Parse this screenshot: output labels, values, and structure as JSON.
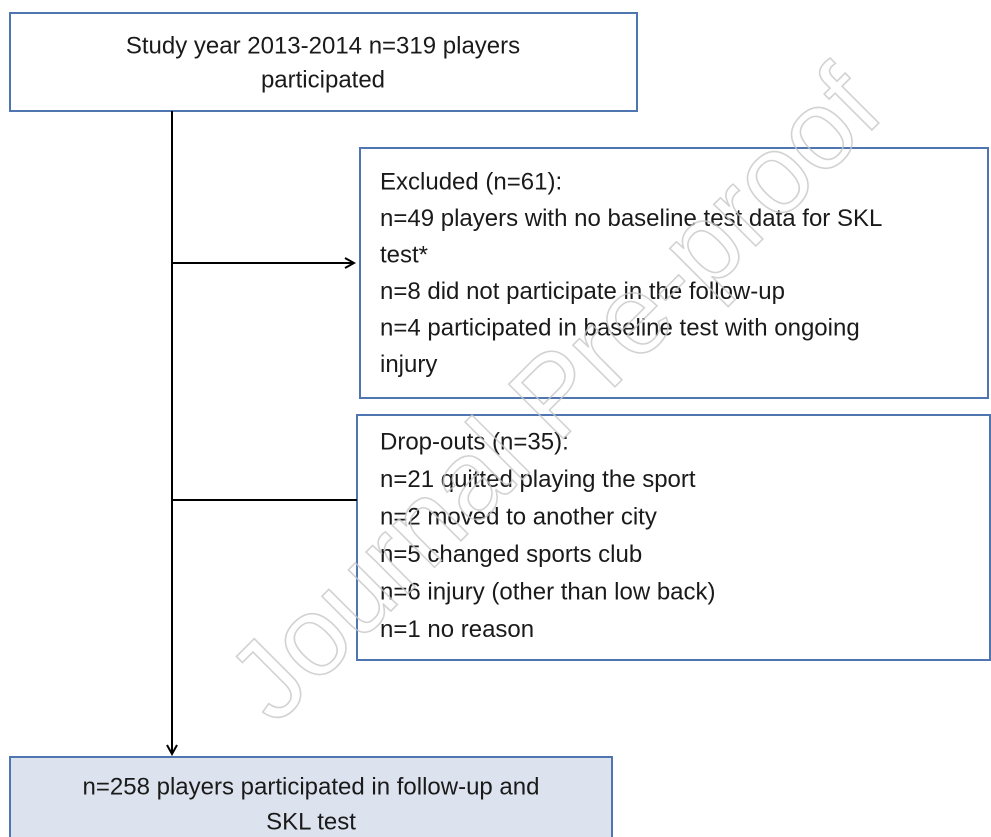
{
  "nodes": [
    {
      "lines": [
        "Study year 2013-2014 n=319 players",
        "participated"
      ]
    },
    {
      "lines": [
        "Excluded (n=61):",
        "n=49 players with no baseline test data for SKL",
        "test*",
        "n=8 did not participate in the follow-up",
        "n=4 participated in baseline test with ongoing",
        "injury"
      ]
    },
    {
      "lines": [
        "Drop-outs (n=35):",
        "n=21 quitted playing the sport",
        "n=2 moved to another city",
        "n=5 changed sports club",
        "n=6 injury (other than low back)",
        "n=1 no reason"
      ]
    },
    {
      "lines": [
        "n=258 players participated in follow-up and",
        "SKL test"
      ]
    }
  ],
  "watermark": "Journal Pre-proof"
}
